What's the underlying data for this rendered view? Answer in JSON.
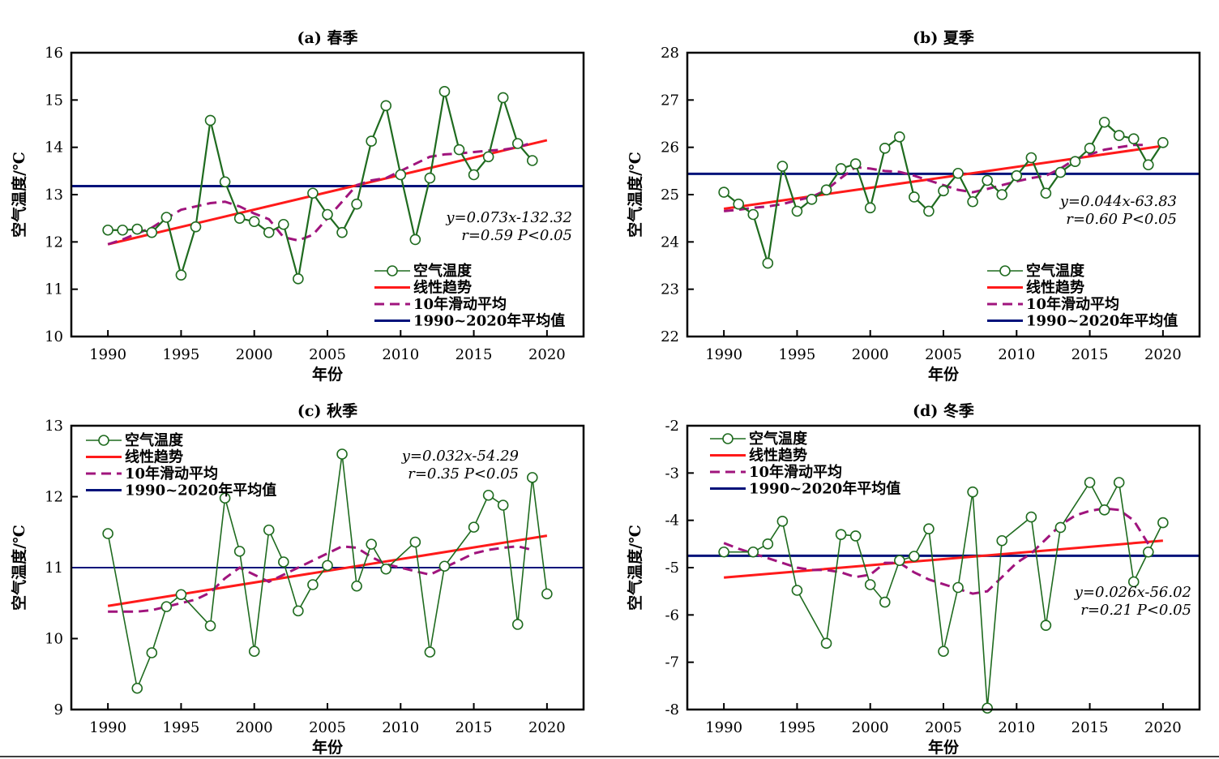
{
  "colors": {
    "temperature": "#1f6b1f",
    "trend": "#ff1a1a",
    "moving_avg": "#a0147d",
    "mean": "#00127a",
    "frame": "#000000"
  },
  "chart_data": [
    {
      "id": "a",
      "type": "line",
      "title": "(a) 春季",
      "xlabel": "年份",
      "ylabel": "空气温度/℃",
      "xlim": [
        1987.5,
        2022.5
      ],
      "ylim": [
        10,
        16
      ],
      "xticks": [
        1990,
        1995,
        2000,
        2005,
        2010,
        2015,
        2020
      ],
      "yticks": [
        10,
        11,
        12,
        13,
        14,
        15,
        16
      ],
      "legend": [
        "空气温度",
        "线性趋势",
        "10年滑动平均",
        "1990~2020年平均值"
      ],
      "legend_position": "bottom-right",
      "equation": "y=0.073x-132.32",
      "stats": "r=0.59  P<0.05",
      "series": [
        {
          "name": "空气温度",
          "x": [
            1990,
            1991,
            1992,
            1993,
            1994,
            1995,
            1996,
            1997,
            1998,
            1999,
            2000,
            2001,
            2002,
            2003,
            2004,
            2005,
            2006,
            2007,
            2008,
            2009,
            2010,
            2011,
            2012,
            2013,
            2014,
            2015,
            2016,
            2017,
            2018,
            2019,
            2020
          ],
          "values": [
            12.25,
            12.25,
            12.27,
            12.2,
            12.52,
            11.3,
            12.32,
            14.57,
            13.27,
            12.5,
            12.43,
            12.2,
            12.37,
            11.22,
            13.03,
            12.58,
            12.2,
            12.8,
            14.13,
            14.88,
            13.42,
            12.05,
            13.35,
            15.18,
            13.95,
            13.42,
            13.8,
            15.05,
            14.08,
            13.72,
            null
          ]
        },
        {
          "name": "10年滑动平均",
          "x": [
            1990,
            1991,
            1992,
            1993,
            1994,
            1995,
            1996,
            1997,
            1998,
            1999,
            2000,
            2001,
            2002,
            2003,
            2004,
            2005,
            2006,
            2007,
            2008,
            2009,
            2010,
            2011,
            2012,
            2013,
            2014,
            2015,
            2016,
            2017,
            2018,
            2019
          ],
          "values": [
            11.95,
            12.05,
            12.18,
            12.3,
            12.5,
            12.68,
            12.75,
            12.82,
            12.85,
            12.75,
            12.6,
            12.48,
            12.1,
            12.03,
            12.15,
            12.5,
            12.85,
            13.2,
            13.3,
            13.35,
            13.5,
            13.65,
            13.8,
            13.85,
            13.87,
            13.9,
            13.93,
            13.95,
            14.0,
            14.1
          ]
        },
        {
          "name": "线性趋势",
          "x": [
            1990,
            2020
          ],
          "values": [
            11.95,
            14.15
          ]
        },
        {
          "name": "1990~2020年平均值",
          "value": 13.18
        }
      ]
    },
    {
      "id": "b",
      "type": "line",
      "title": "(b) 夏季",
      "xlabel": "年份",
      "ylabel": "空气温度/℃",
      "xlim": [
        1987.5,
        2022.5
      ],
      "ylim": [
        22,
        28
      ],
      "xticks": [
        1990,
        1995,
        2000,
        2005,
        2010,
        2015,
        2020
      ],
      "yticks": [
        22,
        23,
        24,
        25,
        26,
        27,
        28
      ],
      "legend": [
        "空气温度",
        "线性趋势",
        "10年滑动平均",
        "1990~2020年平均值"
      ],
      "legend_position": "bottom-right",
      "equation": "y=0.044x-63.83",
      "stats": "r=0.60  P<0.05",
      "series": [
        {
          "name": "空气温度",
          "x": [
            1990,
            1991,
            1992,
            1993,
            1994,
            1995,
            1996,
            1997,
            1998,
            1999,
            2000,
            2001,
            2002,
            2003,
            2004,
            2005,
            2006,
            2007,
            2008,
            2009,
            2010,
            2011,
            2012,
            2013,
            2014,
            2015,
            2016,
            2017,
            2018,
            2019,
            2020
          ],
          "values": [
            25.05,
            24.8,
            24.58,
            23.55,
            25.6,
            24.65,
            24.9,
            25.1,
            25.55,
            25.65,
            24.72,
            25.98,
            26.22,
            24.95,
            24.65,
            25.08,
            25.45,
            24.85,
            25.3,
            25.0,
            25.4,
            25.78,
            25.03,
            25.47,
            25.7,
            25.98,
            26.53,
            26.25,
            26.18,
            25.63,
            26.1
          ]
        },
        {
          "name": "10年滑动平均",
          "x": [
            1990,
            1991,
            1992,
            1993,
            1994,
            1995,
            1996,
            1997,
            1998,
            1999,
            2000,
            2001,
            2002,
            2003,
            2004,
            2005,
            2006,
            2007,
            2008,
            2009,
            2010,
            2011,
            2012,
            2013,
            2014,
            2015,
            2016,
            2017,
            2018,
            2019
          ],
          "values": [
            24.65,
            24.68,
            24.72,
            24.75,
            24.8,
            24.88,
            24.95,
            25.1,
            25.35,
            25.58,
            25.55,
            25.5,
            25.48,
            25.4,
            25.3,
            25.2,
            25.1,
            25.05,
            25.12,
            25.2,
            25.28,
            25.35,
            25.4,
            25.55,
            25.75,
            25.85,
            25.95,
            26.0,
            26.05,
            26.05
          ]
        },
        {
          "name": "线性趋势",
          "x": [
            1990,
            2020
          ],
          "values": [
            24.7,
            26.03
          ]
        },
        {
          "name": "1990~2020年平均值",
          "value": 25.44
        }
      ]
    },
    {
      "id": "c",
      "type": "line",
      "title": "(c) 秋季",
      "xlabel": "年份",
      "ylabel": "空气温度/℃",
      "xlim": [
        1987.5,
        2022.5
      ],
      "ylim": [
        9,
        13
      ],
      "xticks": [
        1990,
        1995,
        2000,
        2005,
        2010,
        2015,
        2020
      ],
      "yticks": [
        9,
        10,
        11,
        12,
        13
      ],
      "legend": [
        "空气温度",
        "线性趋势",
        "10年滑动平均",
        "1990~2020年平均值"
      ],
      "legend_position": "top-left",
      "equation": "y=0.032x-54.29",
      "stats": "r=0.35  P<0.05",
      "series": [
        {
          "name": "空气温度",
          "x": [
            1990,
            1991,
            1992,
            1993,
            1994,
            1995,
            1996,
            1997,
            1998,
            1999,
            2000,
            2001,
            2002,
            2003,
            2004,
            2005,
            2006,
            2007,
            2008,
            2009,
            2010,
            2011,
            2012,
            2013,
            2014,
            2015,
            2016,
            2017,
            2018,
            2019,
            2020
          ],
          "values": [
            11.48,
            null,
            9.3,
            9.8,
            10.45,
            10.62,
            null,
            10.18,
            11.98,
            11.23,
            9.82,
            11.53,
            11.08,
            10.39,
            10.76,
            11.03,
            12.6,
            10.74,
            11.33,
            10.98,
            null,
            11.36,
            9.81,
            11.02,
            null,
            11.57,
            12.02,
            11.88,
            10.2,
            12.27,
            10.63
          ]
        },
        {
          "name": "10年滑动平均",
          "x": [
            1990,
            1991,
            1992,
            1993,
            1994,
            1995,
            1996,
            1997,
            1998,
            1999,
            2000,
            2001,
            2002,
            2003,
            2004,
            2005,
            2006,
            2007,
            2008,
            2009,
            2010,
            2011,
            2012,
            2013,
            2014,
            2015,
            2016,
            2017,
            2018,
            2019
          ],
          "values": [
            10.38,
            10.38,
            10.38,
            10.4,
            10.45,
            10.5,
            10.55,
            10.65,
            10.85,
            11.0,
            10.9,
            10.8,
            10.9,
            11.0,
            11.1,
            11.2,
            11.3,
            11.28,
            11.15,
            11.05,
            11.0,
            10.95,
            10.9,
            11.0,
            11.1,
            11.2,
            11.25,
            11.28,
            11.3,
            11.25
          ]
        },
        {
          "name": "线性趋势",
          "x": [
            1990,
            2020
          ],
          "values": [
            10.46,
            11.45
          ]
        },
        {
          "name": "1990~2020年平均值",
          "value": 11.0
        }
      ]
    },
    {
      "id": "d",
      "type": "line",
      "title": "(d) 冬季",
      "xlabel": "年份",
      "ylabel": "空气温度/℃",
      "xlim": [
        1987.5,
        2022.5
      ],
      "ylim": [
        -8,
        -2
      ],
      "xticks": [
        1990,
        1995,
        2000,
        2005,
        2010,
        2015,
        2020
      ],
      "yticks": [
        -8,
        -7,
        -6,
        -5,
        -4,
        -3,
        -2
      ],
      "legend": [
        "空气温度",
        "线性趋势",
        "10年滑动平均",
        "1990~2020年平均值"
      ],
      "legend_position": "top-left",
      "equation": "y=0.026x-56.02",
      "stats": "r=0.21  P<0.05",
      "series": [
        {
          "name": "空气温度",
          "x": [
            1990,
            1991,
            1992,
            1993,
            1994,
            1995,
            1996,
            1997,
            1998,
            1999,
            2000,
            2001,
            2002,
            2003,
            2004,
            2005,
            2006,
            2007,
            2008,
            2009,
            2010,
            2011,
            2012,
            2013,
            2014,
            2015,
            2016,
            2017,
            2018,
            2019,
            2020
          ],
          "values": [
            -4.67,
            null,
            -4.67,
            -4.5,
            -4.02,
            -5.48,
            null,
            -6.6,
            -4.3,
            -4.33,
            -5.36,
            -5.73,
            -4.85,
            -4.76,
            -4.18,
            -6.77,
            -5.42,
            -3.4,
            -7.97,
            -4.43,
            null,
            -3.93,
            -6.22,
            -4.15,
            null,
            -3.2,
            -3.78,
            -3.2,
            -5.3,
            -4.67,
            -4.05
          ]
        },
        {
          "name": "10年滑动平均",
          "x": [
            1990,
            1991,
            1992,
            1993,
            1994,
            1995,
            1996,
            1997,
            1998,
            1999,
            2000,
            2001,
            2002,
            2003,
            2004,
            2005,
            2006,
            2007,
            2008,
            2009,
            2010,
            2011,
            2012,
            2013,
            2014,
            2015,
            2016,
            2017,
            2018,
            2019
          ],
          "values": [
            -4.48,
            -4.6,
            -4.7,
            -4.8,
            -4.9,
            -5.0,
            -5.05,
            -5.05,
            -5.1,
            -5.2,
            -5.15,
            -4.9,
            -4.9,
            -5.1,
            -5.25,
            -5.35,
            -5.45,
            -5.55,
            -5.5,
            -5.2,
            -4.9,
            -4.7,
            -4.4,
            -4.1,
            -3.9,
            -3.8,
            -3.75,
            -3.78,
            -4.0,
            -4.5
          ]
        },
        {
          "name": "线性趋势",
          "x": [
            1990,
            2020
          ],
          "values": [
            -5.21,
            -4.43
          ]
        },
        {
          "name": "1990~2020年平均值",
          "value": -4.75
        }
      ]
    }
  ]
}
